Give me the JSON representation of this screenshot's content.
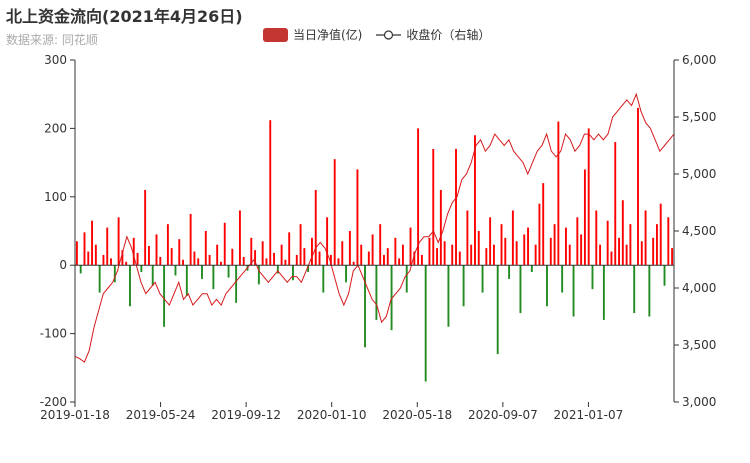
{
  "title": "北上资金流向(2021年4月26日)",
  "subtitle": "数据来源: 同花顺",
  "colors": {
    "positive": "#ff0000",
    "negative": "#228b22",
    "line": "#d7191c",
    "legend_bar": "#c23531",
    "axis": "#333333"
  },
  "chart_data": {
    "type": "bar",
    "legend": [
      "当日净值(亿)",
      "收盘价（右轴）"
    ],
    "x_ticks": [
      "2019-01-18",
      "2019-05-24",
      "2019-09-12",
      "2020-01-10",
      "2020-05-18",
      "2020-09-07",
      "2021-01-07"
    ],
    "y_left": {
      "min": -200,
      "max": 300,
      "ticks": [
        "-200",
        "-100",
        "0",
        "100",
        "200",
        "300"
      ]
    },
    "y_right": {
      "min": 3000,
      "max": 6000,
      "ticks": [
        "3,000",
        "3,500",
        "4,000",
        "4,500",
        "5,000",
        "5,500",
        "6,000"
      ]
    },
    "net_flow_series": [
      35,
      -12,
      48,
      20,
      65,
      30,
      -40,
      15,
      55,
      10,
      -25,
      70,
      22,
      5,
      -60,
      40,
      18,
      -10,
      110,
      28,
      -30,
      45,
      12,
      -90,
      60,
      25,
      -15,
      38,
      8,
      -45,
      75,
      20,
      10,
      -20,
      50,
      15,
      -35,
      30,
      5,
      62,
      -18,
      24,
      -55,
      80,
      12,
      -8,
      40,
      22,
      -28,
      35,
      10,
      212,
      18,
      -12,
      30,
      8,
      48,
      -22,
      15,
      60,
      25,
      -10,
      40,
      110,
      20,
      -40,
      70,
      15,
      155,
      10,
      35,
      -25,
      50,
      5,
      140,
      30,
      -120,
      20,
      45,
      -80,
      60,
      15,
      25,
      -95,
      40,
      10,
      30,
      -40,
      55,
      20,
      200,
      15,
      -170,
      40,
      170,
      25,
      110,
      35,
      -90,
      30,
      170,
      20,
      -60,
      80,
      30,
      190,
      50,
      -40,
      25,
      70,
      30,
      -130,
      60,
      40,
      -20,
      80,
      35,
      -70,
      45,
      55,
      -10,
      30,
      90,
      120,
      -60,
      40,
      60,
      210,
      -40,
      55,
      30,
      -75,
      70,
      45,
      140,
      200,
      -35,
      80,
      30,
      -80,
      65,
      20,
      180,
      40,
      95,
      30,
      60,
      -70,
      230,
      35,
      80,
      -75,
      40,
      60,
      90,
      -30,
      70,
      25
    ],
    "close_series": [
      3400,
      3380,
      3350,
      3450,
      3650,
      3800,
      3950,
      4000,
      4050,
      4150,
      4300,
      4450,
      4350,
      4200,
      4050,
      3950,
      4000,
      4050,
      3950,
      3900,
      3850,
      3950,
      4050,
      3900,
      3950,
      3850,
      3900,
      3950,
      3950,
      3850,
      3900,
      3850,
      3950,
      4000,
      4050,
      4100,
      4150,
      4200,
      4250,
      4150,
      4100,
      4050,
      4100,
      4150,
      4100,
      4050,
      4100,
      4100,
      4050,
      4150,
      4250,
      4350,
      4400,
      4350,
      4250,
      4100,
      3950,
      3850,
      3950,
      4150,
      4200,
      4100,
      4000,
      3900,
      3850,
      3700,
      3750,
      3900,
      3950,
      4000,
      4100,
      4150,
      4300,
      4400,
      4450,
      4450,
      4500,
      4400,
      4500,
      4650,
      4750,
      4800,
      4950,
      5000,
      5100,
      5250,
      5300,
      5200,
      5250,
      5350,
      5300,
      5250,
      5300,
      5200,
      5150,
      5100,
      5000,
      5100,
      5200,
      5250,
      5350,
      5200,
      5150,
      5200,
      5350,
      5300,
      5200,
      5250,
      5350,
      5350,
      5300,
      5350,
      5300,
      5350,
      5500,
      5550,
      5600,
      5650,
      5600,
      5700,
      5550,
      5450,
      5400,
      5300,
      5200,
      5250,
      5300,
      5350
    ]
  }
}
